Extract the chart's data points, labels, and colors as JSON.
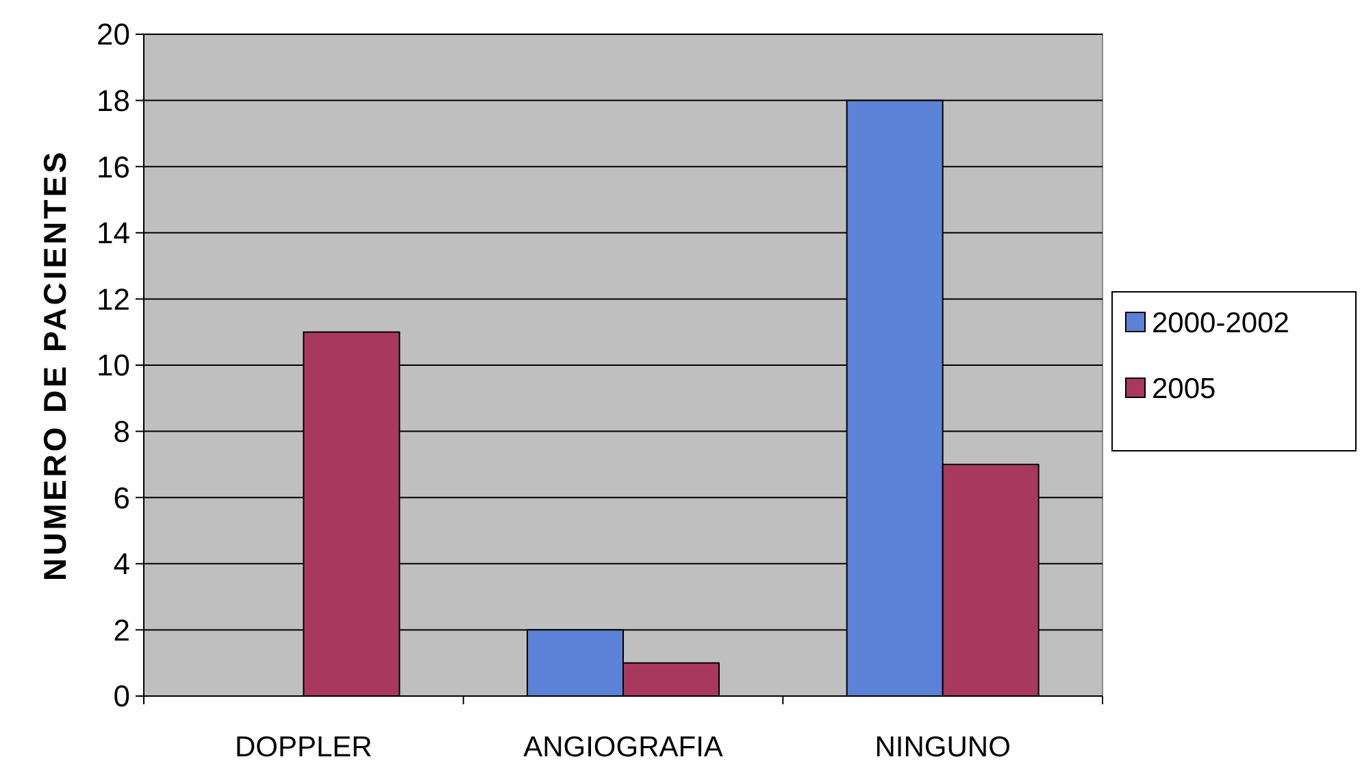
{
  "chart_data": {
    "type": "bar",
    "ylabel": "NUMERO DE PACIENTES",
    "categories": [
      "DOPPLER",
      "ANGIOGRAFIA",
      "NINGUNO"
    ],
    "series": [
      {
        "name": "2000-2002",
        "color": "#5b82d6",
        "values": [
          0,
          2,
          18
        ]
      },
      {
        "name": "2005",
        "color": "#a8385e",
        "values": [
          11,
          1,
          7
        ]
      }
    ],
    "ylim": [
      0,
      20
    ],
    "yticks": [
      0,
      2,
      4,
      6,
      8,
      10,
      12,
      14,
      16,
      18,
      20
    ],
    "grid": "y",
    "legend": "right"
  }
}
